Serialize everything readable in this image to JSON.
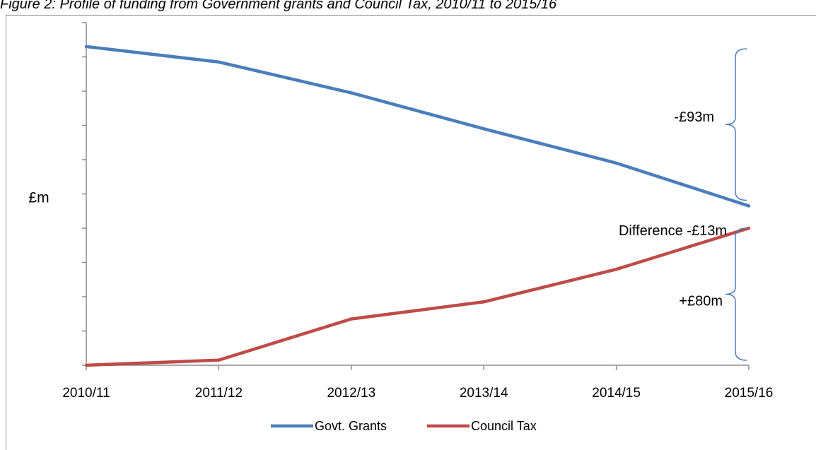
{
  "figure": {
    "title": "Figure 2: Profile of funding from Government grants and Council Tax, 2010/11 to 2015/16"
  },
  "chart_data": {
    "type": "line",
    "title": "Figure 2: Profile of funding from Government grants and Council Tax, 2010/11 to 2015/16",
    "xlabel": "",
    "ylabel": "£m",
    "categories": [
      "2010/11",
      "2011/12",
      "2012/13",
      "2013/14",
      "2014/15",
      "2015/16"
    ],
    "ylim": [
      0,
      10
    ],
    "y_tick_labels_shown": false,
    "grid": false,
    "legend_position": "bottom",
    "series": [
      {
        "name": "Govt. Grants",
        "color": "#4a7ebb",
        "values": [
          9.3,
          8.85,
          7.95,
          6.9,
          5.9,
          4.65
        ]
      },
      {
        "name": "Council Tax",
        "color": "#be4b48",
        "values": [
          0.0,
          0.15,
          1.35,
          1.85,
          2.8,
          4.0
        ]
      }
    ],
    "annotations": [
      {
        "id": "grants_change",
        "text": "-£93m"
      },
      {
        "id": "difference",
        "text": "Difference -£13m"
      },
      {
        "id": "tax_change",
        "text": "+£80m"
      }
    ]
  }
}
